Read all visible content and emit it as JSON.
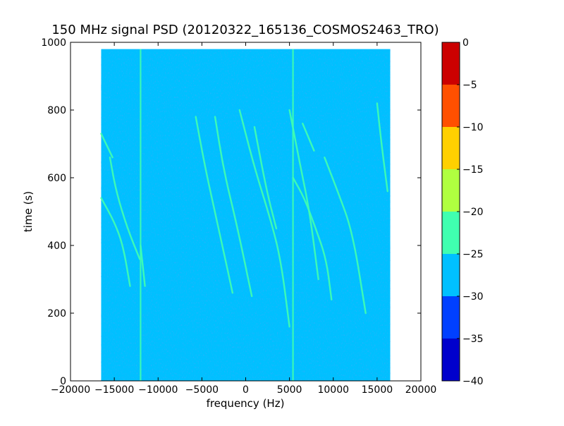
{
  "chart_data": {
    "type": "heatmap",
    "title": "150 MHz signal PSD (20120322_165136_COSMOS2463_TRO)",
    "xlabel": "frequency (Hz)",
    "ylabel": "time (s)",
    "xlim": [
      -20000,
      20000
    ],
    "ylim": [
      0,
      1000
    ],
    "xticks": [
      -20000,
      -15000,
      -10000,
      -5000,
      0,
      5000,
      10000,
      15000,
      20000
    ],
    "xtick_labels": [
      "−20000",
      "−15000",
      "−10000",
      "−5000",
      "0",
      "5000",
      "10000",
      "15000",
      "20000"
    ],
    "yticks": [
      0,
      200,
      400,
      600,
      800,
      1000
    ],
    "ytick_labels": [
      "0",
      "200",
      "400",
      "600",
      "800",
      "1000"
    ],
    "data_extent": {
      "x": [
        -16500,
        16500
      ],
      "y": [
        0,
        980
      ]
    },
    "background_level": -28,
    "background_color": "#00c0ff",
    "colorbar": {
      "levels": [
        -40,
        -35,
        -30,
        -25,
        -20,
        -15,
        -10,
        -5,
        0
      ],
      "tick_labels": [
        "−40",
        "−35",
        "−30",
        "−25",
        "−20",
        "−15",
        "−10",
        "−5",
        "0"
      ],
      "colors": [
        "#0000cc",
        "#0040ff",
        "#00c0ff",
        "#40ffb0",
        "#b0ff40",
        "#ffd000",
        "#ff5000",
        "#cc0000"
      ]
    },
    "vertical_lines": [
      {
        "x": -12000,
        "level": -22
      },
      {
        "x": 5400,
        "level": -22
      }
    ],
    "traces": [
      {
        "level": -22,
        "points": [
          [
            -16500,
            540
          ],
          [
            -15000,
            470
          ],
          [
            -14000,
            400
          ],
          [
            -13200,
            280
          ]
        ]
      },
      {
        "level": -22,
        "points": [
          [
            -16500,
            730
          ],
          [
            -15200,
            660
          ]
        ]
      },
      {
        "level": -24,
        "points": [
          [
            -15500,
            660
          ],
          [
            -14800,
            560
          ],
          [
            -13500,
            450
          ],
          [
            -12100,
            360
          ]
        ]
      },
      {
        "level": -22,
        "points": [
          [
            -12000,
            400
          ],
          [
            -11500,
            280
          ]
        ]
      },
      {
        "level": -24,
        "points": [
          [
            -5700,
            780
          ],
          [
            -4700,
            640
          ],
          [
            -3700,
            520
          ],
          [
            -2500,
            380
          ],
          [
            -1500,
            260
          ]
        ]
      },
      {
        "level": -24,
        "points": [
          [
            -3500,
            780
          ],
          [
            -2500,
            620
          ],
          [
            -1000,
            460
          ],
          [
            700,
            250
          ]
        ]
      },
      {
        "level": -22,
        "points": [
          [
            -700,
            800
          ],
          [
            1000,
            630
          ],
          [
            2800,
            480
          ],
          [
            4000,
            360
          ],
          [
            5000,
            160
          ]
        ]
      },
      {
        "level": -24,
        "points": [
          [
            1000,
            750
          ],
          [
            2400,
            560
          ],
          [
            3500,
            450
          ]
        ]
      },
      {
        "level": -24,
        "points": [
          [
            5000,
            800
          ],
          [
            6200,
            640
          ],
          [
            7300,
            500
          ],
          [
            8300,
            300
          ]
        ]
      },
      {
        "level": -22,
        "points": [
          [
            5400,
            600
          ],
          [
            6700,
            540
          ],
          [
            8000,
            450
          ],
          [
            9200,
            360
          ],
          [
            9800,
            240
          ]
        ]
      },
      {
        "level": -24,
        "points": [
          [
            9000,
            660
          ],
          [
            10500,
            560
          ],
          [
            12200,
            440
          ],
          [
            13700,
            200
          ]
        ]
      },
      {
        "level": -22,
        "points": [
          [
            15000,
            820
          ],
          [
            15500,
            700
          ],
          [
            16200,
            560
          ]
        ]
      },
      {
        "level": -24,
        "points": [
          [
            6500,
            760
          ],
          [
            7800,
            680
          ]
        ]
      }
    ]
  }
}
